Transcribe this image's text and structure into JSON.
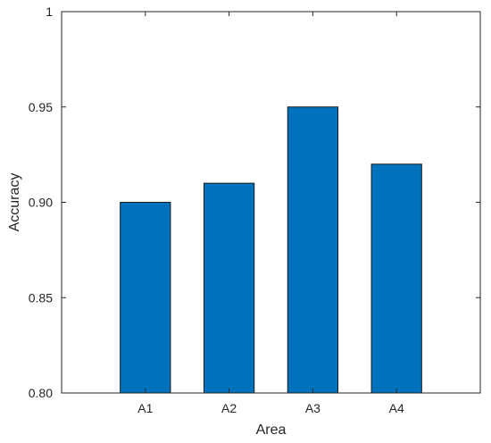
{
  "chart_data": {
    "type": "bar",
    "title": "",
    "xlabel": "Area",
    "ylabel": "Accuracy",
    "categories": [
      "A1",
      "A2",
      "A3",
      "A4"
    ],
    "values": [
      0.9,
      0.91,
      0.95,
      0.92
    ],
    "ylim": [
      0.8,
      1.0
    ],
    "yticks": [
      0.8,
      0.85,
      0.9,
      0.95,
      1.0
    ],
    "ytick_labels": [
      "0.80",
      "0.85",
      "0.90",
      "0.95",
      "1"
    ],
    "grid": false,
    "legend": "none",
    "bar_color": "#0072BD",
    "bar_edge_color": "#1a1a1a",
    "axis_color": "#262626"
  }
}
